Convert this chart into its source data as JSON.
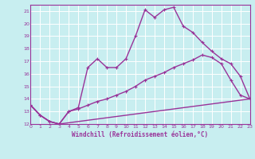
{
  "xlabel": "Windchill (Refroidissement éolien,°C)",
  "bg_color": "#c8eef0",
  "grid_color": "#ffffff",
  "line_color": "#993399",
  "xlim": [
    0,
    23
  ],
  "ylim": [
    12,
    21.5
  ],
  "xticks": [
    0,
    1,
    2,
    3,
    4,
    5,
    6,
    7,
    8,
    9,
    10,
    11,
    12,
    13,
    14,
    15,
    16,
    17,
    18,
    19,
    20,
    21,
    22,
    23
  ],
  "yticks": [
    12,
    13,
    14,
    15,
    16,
    17,
    18,
    19,
    20,
    21
  ],
  "line1_x": [
    0,
    1,
    2,
    3,
    4,
    5,
    6,
    7,
    8,
    9,
    10,
    11,
    12,
    13,
    14,
    15,
    16,
    17,
    18,
    19,
    20,
    21,
    22,
    23
  ],
  "line1_y": [
    13.5,
    12.7,
    12.2,
    12.0,
    13.0,
    13.3,
    16.5,
    17.2,
    16.5,
    16.5,
    17.2,
    19.0,
    21.1,
    20.5,
    21.1,
    21.3,
    19.8,
    19.3,
    18.5,
    17.8,
    17.2,
    16.8,
    15.8,
    14.0
  ],
  "line2_x": [
    0,
    1,
    2,
    3,
    4,
    5,
    6,
    7,
    8,
    9,
    10,
    11,
    12,
    13,
    14,
    15,
    16,
    17,
    18,
    19,
    20,
    21,
    22,
    23
  ],
  "line2_y": [
    13.5,
    12.7,
    12.2,
    12.0,
    13.0,
    13.2,
    13.5,
    13.8,
    14.0,
    14.3,
    14.6,
    15.0,
    15.5,
    15.8,
    16.1,
    16.5,
    16.8,
    17.1,
    17.5,
    17.3,
    16.8,
    15.5,
    14.3,
    14.0
  ],
  "line3_x": [
    0,
    1,
    2,
    3,
    4,
    5,
    6,
    7,
    8,
    9,
    10,
    11,
    12,
    13,
    14,
    15,
    16,
    17,
    18,
    19,
    20,
    21,
    22,
    23
  ],
  "line3_y": [
    13.5,
    12.7,
    12.2,
    12.0,
    12.1,
    12.2,
    12.3,
    12.4,
    12.5,
    12.6,
    12.7,
    12.8,
    12.9,
    13.0,
    13.1,
    13.2,
    13.3,
    13.4,
    13.5,
    13.6,
    13.7,
    13.8,
    13.9,
    14.0
  ]
}
